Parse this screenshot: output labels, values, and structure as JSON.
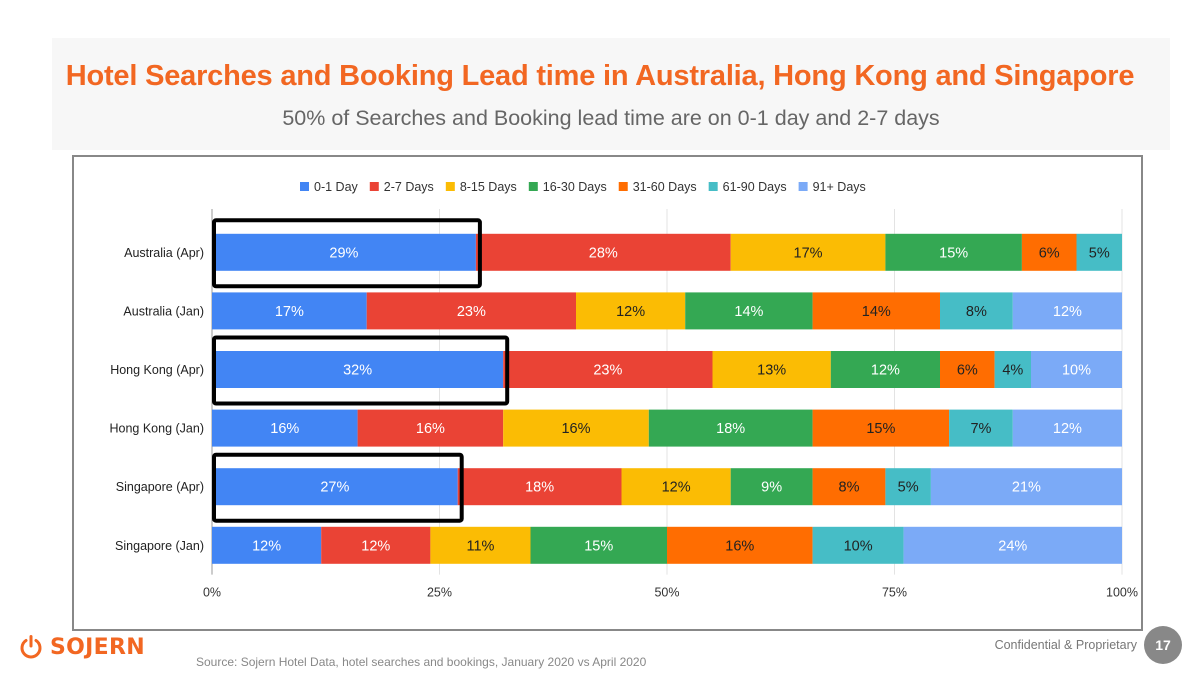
{
  "slide": {
    "title": "Hotel Searches and Booking Lead time in Australia, Hong Kong and Singapore",
    "subtitle": "50% of Searches and Booking lead time are on 0-1 day and 2-7 days",
    "source": "Source: Sojern Hotel Data, hotel searches and bookings, January 2020 vs April 2020",
    "confidential": "Confidential & Proprietary",
    "page_number": "17",
    "logo_text": "SOJERN",
    "brand_color": "#f26722"
  },
  "chart_data": {
    "type": "bar",
    "orientation": "horizontal",
    "stacked": "percent",
    "categories": [
      "Australia (Apr)",
      "Australia (Jan)",
      "Hong Kong (Apr)",
      "Hong Kong (Jan)",
      "Singapore (Apr)",
      "Singapore (Jan)"
    ],
    "series": [
      {
        "name": "0-1 Day",
        "color": "#4285f4",
        "values": [
          29,
          17,
          32,
          16,
          27,
          12
        ]
      },
      {
        "name": "2-7 Days",
        "color": "#ea4335",
        "values": [
          28,
          23,
          23,
          16,
          18,
          12
        ]
      },
      {
        "name": "8-15 Days",
        "color": "#fbbc04",
        "values": [
          17,
          12,
          13,
          16,
          12,
          11
        ]
      },
      {
        "name": "16-30 Days",
        "color": "#34a853",
        "values": [
          15,
          14,
          12,
          18,
          9,
          15
        ]
      },
      {
        "name": "31-60 Days",
        "color": "#ff6d01",
        "values": [
          6,
          14,
          6,
          15,
          8,
          16
        ]
      },
      {
        "name": "61-90 Days",
        "color": "#46bdc6",
        "values": [
          5,
          8,
          4,
          7,
          5,
          10
        ]
      },
      {
        "name": "91+ Days",
        "color": "#7baaf7",
        "values": [
          0,
          12,
          10,
          12,
          21,
          24
        ]
      }
    ],
    "xlim": [
      0,
      100
    ],
    "xticks": [
      "0%",
      "25%",
      "50%",
      "75%",
      "100%"
    ],
    "legend_position": "top",
    "grid": true,
    "highlighted_segments": [
      {
        "category": "Australia (Apr)",
        "series": "0-1 Day"
      },
      {
        "category": "Hong Kong (Apr)",
        "series": "0-1 Day"
      },
      {
        "category": "Singapore (Apr)",
        "series": "0-1 Day"
      }
    ]
  }
}
